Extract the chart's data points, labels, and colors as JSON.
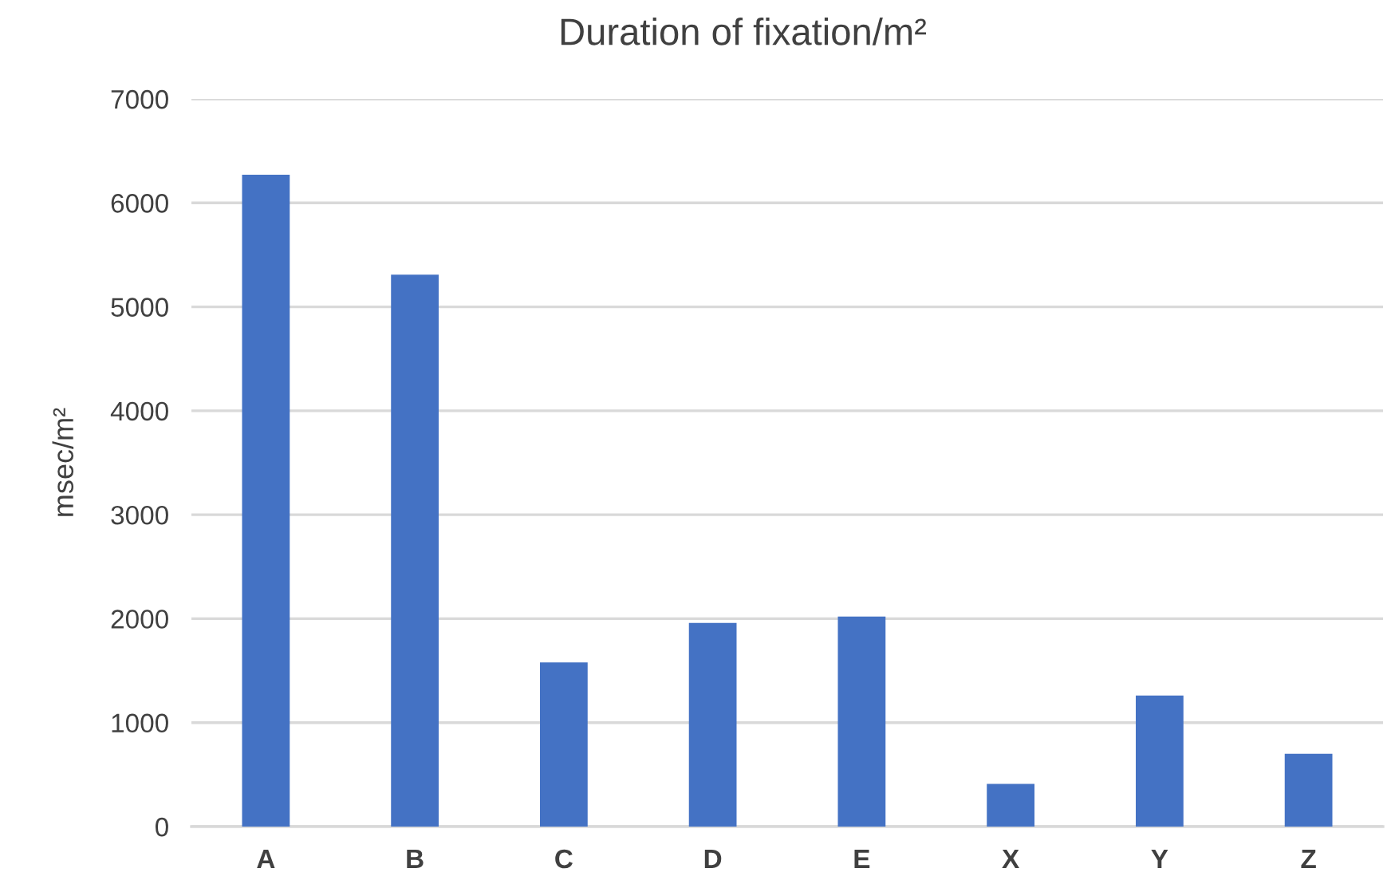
{
  "chart_data": {
    "type": "bar",
    "title": "Duration of fixation/m²",
    "ylabel": "msec/m²",
    "categories": [
      "A",
      "B",
      "C",
      "D",
      "E",
      "X",
      "Y",
      "Z"
    ],
    "values": [
      6270,
      5310,
      1580,
      1960,
      2020,
      410,
      1260,
      700
    ],
    "color": "#4472c4",
    "ylim": [
      0,
      7000
    ],
    "yticks": [
      0,
      1000,
      2000,
      3000,
      4000,
      5000,
      6000,
      7000
    ],
    "grid": "y"
  }
}
